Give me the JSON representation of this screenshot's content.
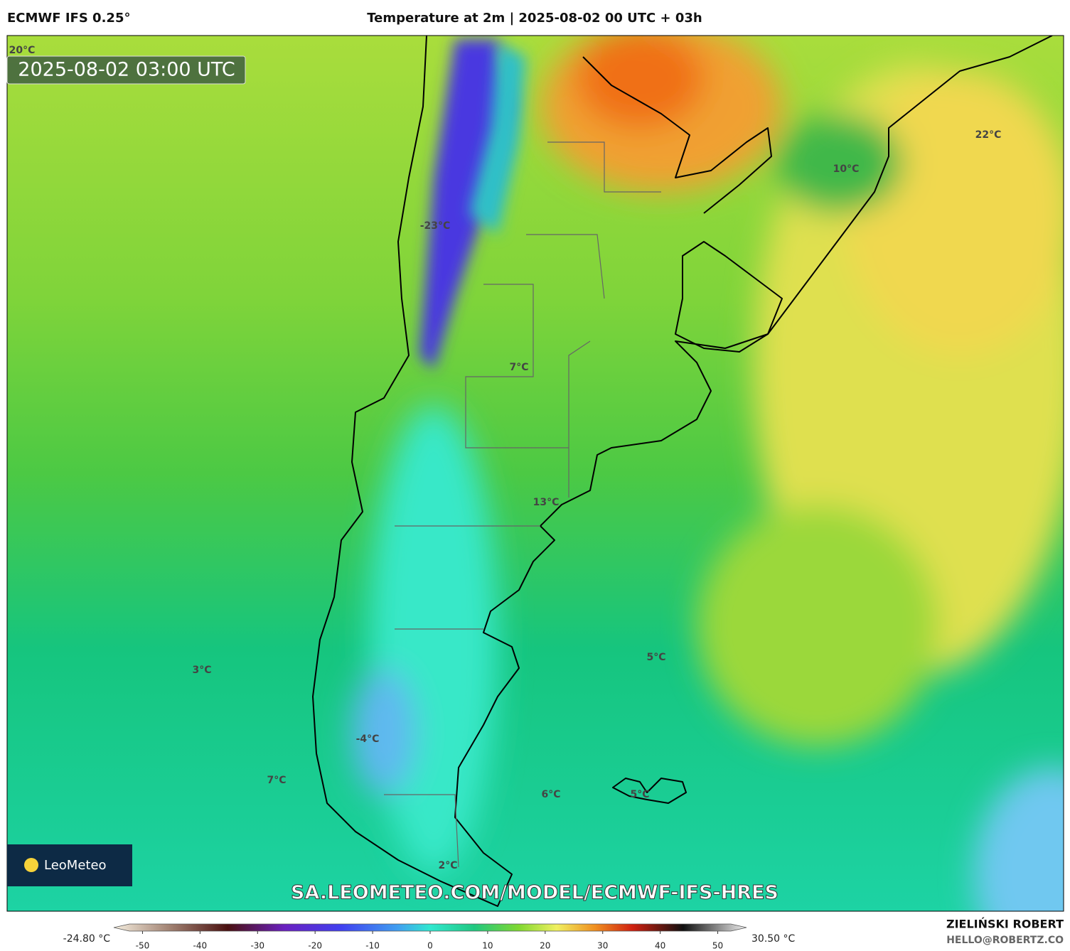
{
  "header": {
    "model": "ECMWF IFS 0.25°",
    "title": "Temperature at 2m | 2025-08-02 00 UTC + 03h"
  },
  "map": {
    "timestamp": "2025-08-02 03:00 UTC",
    "labels": [
      "20°C",
      "22°C",
      "10°C",
      "-23°C",
      "7°C",
      "13°C",
      "5°C",
      "3°C",
      "-4°C",
      "7°C",
      "6°C",
      "5°C",
      "2°C"
    ],
    "url": "SA.LEOMETEO.COM/MODEL/ECMWF-IFS-HRES",
    "logo": "LeoMeteo"
  },
  "colorbar": {
    "range": [
      -55,
      55
    ],
    "ticks": [
      -50,
      -40,
      -30,
      -20,
      -10,
      0,
      10,
      20,
      30,
      40,
      50
    ],
    "min_label": "-24.80 °C",
    "max_label": "30.50 °C"
  },
  "footer": {
    "author": "ZIELIŃSKI ROBERT",
    "email": "HELLO@ROBERTZ.CO"
  }
}
